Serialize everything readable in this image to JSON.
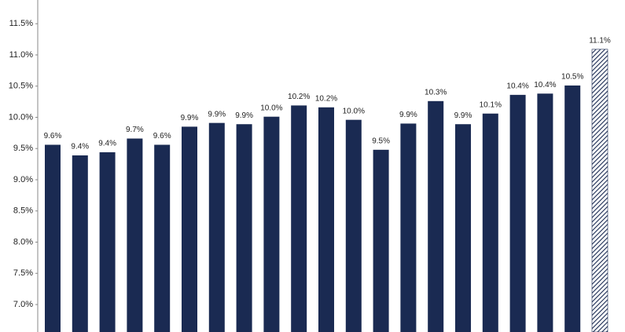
{
  "chart_data": {
    "type": "bar",
    "categories": [
      null,
      null,
      null,
      null,
      null,
      null,
      null,
      null,
      null,
      null,
      null,
      null,
      null,
      null,
      null,
      null,
      null,
      null,
      null,
      null,
      null
    ],
    "values": [
      9.56,
      9.39,
      9.44,
      9.66,
      9.56,
      9.85,
      9.91,
      9.89,
      10.01,
      10.19,
      10.16,
      9.96,
      9.48,
      9.9,
      10.26,
      9.89,
      10.06,
      10.36,
      10.38,
      10.51,
      11.09
    ],
    "value_labels": [
      "9.6%",
      "9.4%",
      "9.4%",
      "9.7%",
      "9.6%",
      "9.9%",
      "9.9%",
      "9.9%",
      "10.0%",
      "10.2%",
      "10.2%",
      "10.0%",
      "9.5%",
      "9.9%",
      "10.3%",
      "9.9%",
      "10.1%",
      "10.4%",
      "10.4%",
      "10.5%",
      "11.1%"
    ],
    "color": "#1a2a52",
    "hatched_index": 20,
    "ylim": [
      6.56,
      11.88
    ],
    "yticks": [
      {
        "value": 7,
        "label": "7.0%"
      },
      {
        "value": 7.5,
        "label": "7.5%"
      },
      {
        "value": 8,
        "label": "8.0%"
      },
      {
        "value": 8.5,
        "label": "8.5%"
      },
      {
        "value": 9,
        "label": "9.0%"
      },
      {
        "value": 9.5,
        "label": "9.5%"
      },
      {
        "value": 10,
        "label": "10.0%"
      },
      {
        "value": 10.5,
        "label": "10.5%"
      },
      {
        "value": 11,
        "label": "11.0%"
      },
      {
        "value": 11.5,
        "label": "11.5%"
      }
    ],
    "grid": false
  }
}
